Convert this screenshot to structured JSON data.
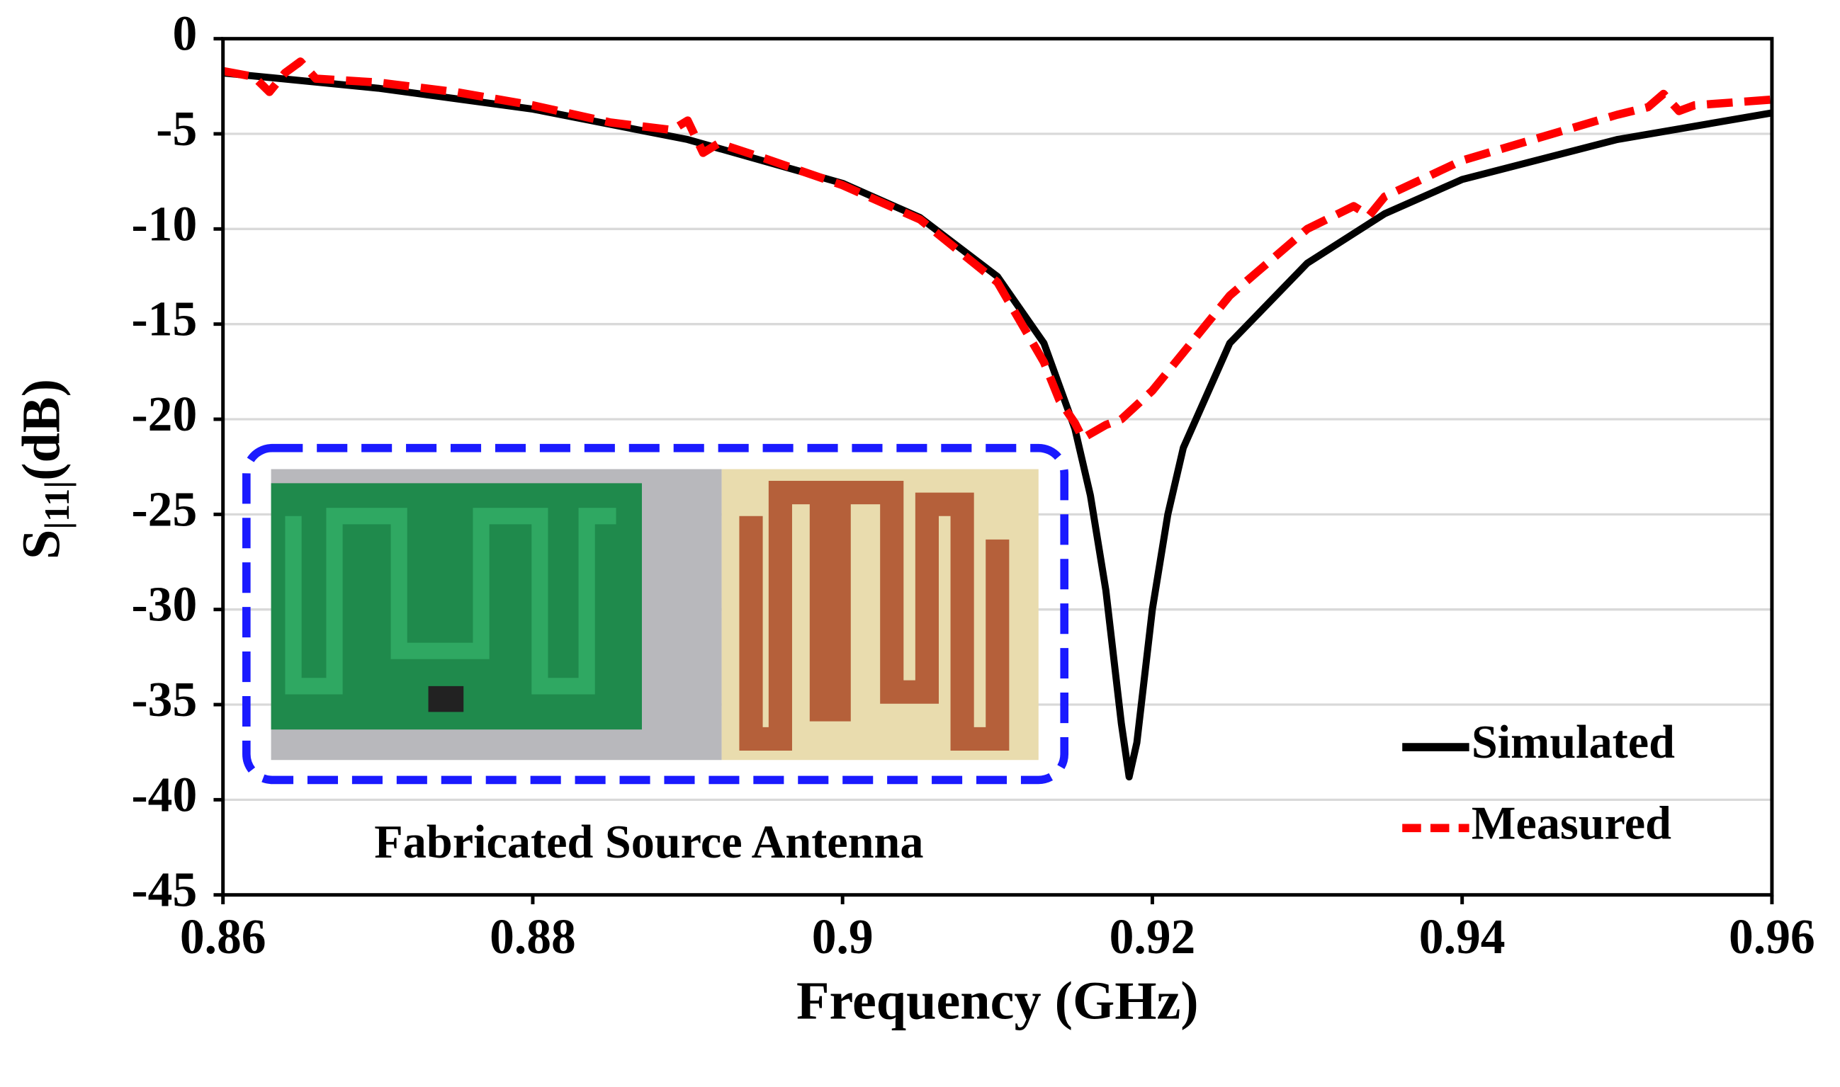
{
  "chart_data": {
    "type": "line",
    "xlabel": "Frequency (GHz)",
    "ylabel": {
      "main": "S",
      "sub": "|11|",
      "unit": "(dB)"
    },
    "annotation": "Fabricated Source Antenna",
    "xlim": [
      0.86,
      0.96
    ],
    "xticks": [
      0.86,
      0.88,
      0.9,
      0.92,
      0.94,
      0.96
    ],
    "ylim": [
      -45,
      0
    ],
    "yticks": [
      0,
      -5,
      -10,
      -15,
      -20,
      -25,
      -30,
      -35,
      -40,
      -45
    ],
    "grid": true,
    "legend": "lower right",
    "series": [
      {
        "name": "Simulated",
        "color": "#000000",
        "dash": "solid",
        "x": [
          0.86,
          0.87,
          0.88,
          0.89,
          0.9,
          0.905,
          0.91,
          0.913,
          0.915,
          0.916,
          0.917,
          0.918,
          0.9185,
          0.919,
          0.92,
          0.921,
          0.922,
          0.925,
          0.93,
          0.935,
          0.94,
          0.95,
          0.96
        ],
        "values": [
          -1.8,
          -2.6,
          -3.7,
          -5.3,
          -7.6,
          -9.4,
          -12.5,
          -16,
          -20.5,
          -24,
          -29,
          -36,
          -38.8,
          -37,
          -30,
          -25,
          -21.5,
          -16,
          -11.8,
          -9.2,
          -7.4,
          -5.3,
          -3.9
        ]
      },
      {
        "name": "Measured",
        "color": "#ff0000",
        "dash": "dashed",
        "x": [
          0.86,
          0.862,
          0.863,
          0.864,
          0.865,
          0.866,
          0.87,
          0.875,
          0.88,
          0.885,
          0.889,
          0.89,
          0.891,
          0.892,
          0.895,
          0.9,
          0.905,
          0.91,
          0.913,
          0.914,
          0.915,
          0.9155,
          0.917,
          0.918,
          0.92,
          0.922,
          0.925,
          0.93,
          0.933,
          0.934,
          0.935,
          0.94,
          0.945,
          0.95,
          0.952,
          0.953,
          0.954,
          0.955,
          0.96
        ],
        "values": [
          -1.7,
          -2.0,
          -2.8,
          -1.8,
          -1.2,
          -2.1,
          -2.3,
          -2.8,
          -3.5,
          -4.4,
          -4.8,
          -4.3,
          -6.0,
          -5.5,
          -6.3,
          -7.7,
          -9.5,
          -12.8,
          -17,
          -19,
          -20.2,
          -21,
          -20.3,
          -20,
          -18.5,
          -16.5,
          -13.5,
          -10,
          -8.8,
          -9.3,
          -8.3,
          -6.4,
          -5.2,
          -4.0,
          -3.6,
          -2.9,
          -3.8,
          -3.5,
          -3.2
        ]
      }
    ]
  }
}
